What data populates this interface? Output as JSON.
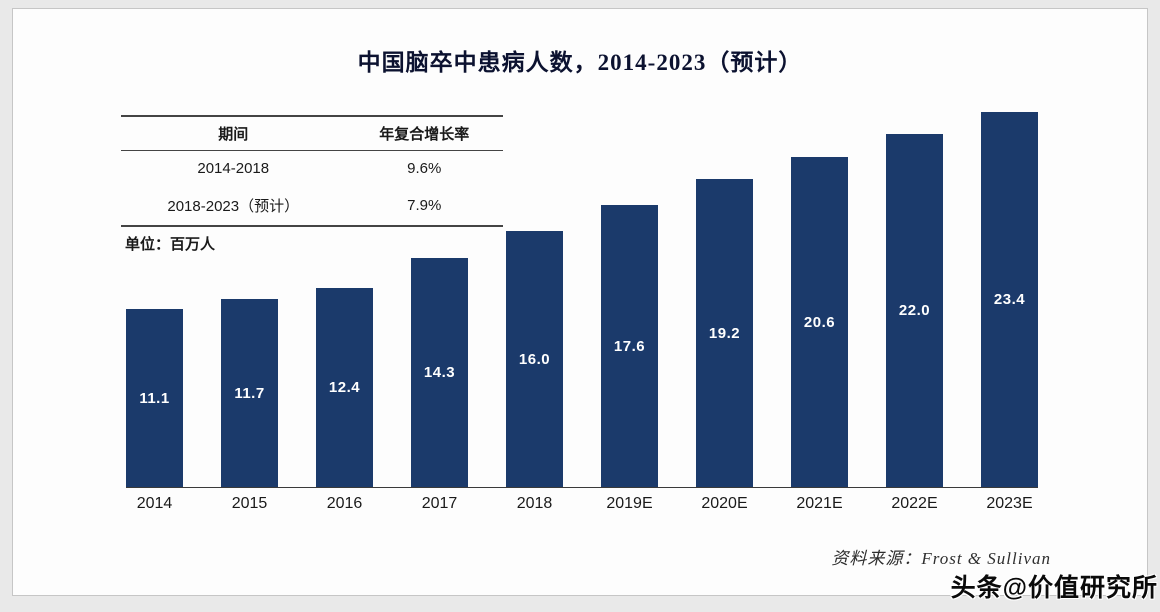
{
  "page": {
    "title": "中国脑卒中患病人数，2014-2023（预计）",
    "unit_label": "单位：百万人",
    "source": "资料来源：Frost & Sullivan",
    "watermark": "头条@价值研究所"
  },
  "cagr_table": {
    "headers": [
      "期间",
      "年复合增长率"
    ],
    "rows": [
      [
        "2014-2018",
        "9.6%"
      ],
      [
        "2018-2023（预计）",
        "7.9%"
      ]
    ]
  },
  "chart_data": {
    "type": "bar",
    "title": "中国脑卒中患病人数，2014-2023（预计）",
    "categories": [
      "2014",
      "2015",
      "2016",
      "2017",
      "2018",
      "2019E",
      "2020E",
      "2021E",
      "2022E",
      "2023E"
    ],
    "values": [
      11.1,
      11.7,
      12.4,
      14.3,
      16.0,
      17.6,
      19.2,
      20.6,
      22.0,
      23.4
    ],
    "value_label_decimals": 1,
    "unit": "百万人",
    "xlabel": "",
    "ylabel": "",
    "ylim": [
      0,
      23.4
    ],
    "grid": false,
    "legend": false,
    "bar_color": "#1b3a6b",
    "value_label_color": "#ffffff"
  }
}
